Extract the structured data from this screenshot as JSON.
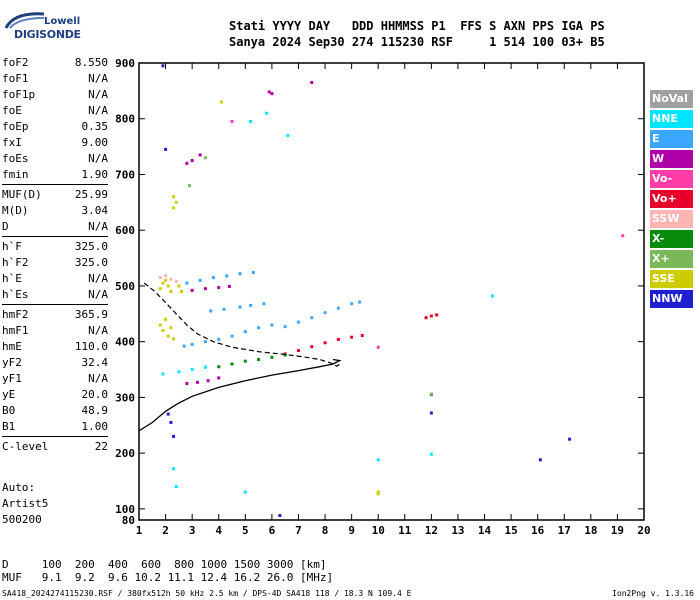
{
  "logo": {
    "text_top": "Lowell",
    "text_bottom": "DIGISONDE"
  },
  "header": {
    "line1": "Stati YYYY DAY   DDD HHMMSS P1  FFS S AXN PPS IGA PS",
    "line2": "Sanya 2024 Sep30 274 115230 RSF     1 514 100 03+ B5"
  },
  "params_groups": [
    [
      {
        "k": "foF2",
        "v": "8.550"
      },
      {
        "k": "foF1",
        "v": "N/A"
      },
      {
        "k": "foF1p",
        "v": "N/A"
      },
      {
        "k": "foE",
        "v": "N/A"
      },
      {
        "k": "foEp",
        "v": "0.35"
      },
      {
        "k": "fxI",
        "v": "9.00"
      },
      {
        "k": "foEs",
        "v": "N/A"
      },
      {
        "k": "fmin",
        "v": "1.90"
      }
    ],
    [
      {
        "k": "MUF(D)",
        "v": "25.99"
      },
      {
        "k": "M(D)",
        "v": "3.04"
      },
      {
        "k": "D",
        "v": "N/A"
      }
    ],
    [
      {
        "k": "h`F",
        "v": "325.0"
      },
      {
        "k": "h`F2",
        "v": "325.0"
      },
      {
        "k": "h`E",
        "v": "N/A"
      },
      {
        "k": "h`Es",
        "v": "N/A"
      }
    ],
    [
      {
        "k": "hmF2",
        "v": "365.9"
      },
      {
        "k": "hmF1",
        "v": "N/A"
      },
      {
        "k": "hmE",
        "v": "110.0"
      },
      {
        "k": "yF2",
        "v": "32.4"
      },
      {
        "k": "yF1",
        "v": "N/A"
      },
      {
        "k": "yE",
        "v": "20.0"
      },
      {
        "k": "B0",
        "v": "48.9"
      },
      {
        "k": "B1",
        "v": "1.00"
      }
    ],
    [
      {
        "k": "C-level",
        "v": "22"
      }
    ]
  ],
  "auto": [
    "Auto:",
    "Artist5",
    "500200"
  ],
  "legend": [
    {
      "label": "NoVal",
      "color": "#a0a0a0"
    },
    {
      "label": "NNE",
      "color": "#00e5ff"
    },
    {
      "label": "E",
      "color": "#3aa6ff"
    },
    {
      "label": "W",
      "color": "#b000a8"
    },
    {
      "label": "Vo-",
      "color": "#ff3ca8"
    },
    {
      "label": "Vo+",
      "color": "#e8002a"
    },
    {
      "label": "SSW",
      "color": "#ffb4b4"
    },
    {
      "label": "X-",
      "color": "#0a8a0a"
    },
    {
      "label": "X+",
      "color": "#7ab85a"
    },
    {
      "label": "SSE",
      "color": "#cccc00"
    },
    {
      "label": "NNW",
      "color": "#2020d0"
    }
  ],
  "dtable": {
    "row1": "D     100  200  400  600  800 1000 1500 3000 [km]",
    "row2": "MUF   9.1  9.2  9.6 10.2 11.1 12.4 16.2 26.0 [MHz]"
  },
  "footer": {
    "left": "SA418_2024274115230.RSF / 380fx512h 50 kHz 2.5 km / DPS-4D SA418 118 / 18.3 N 109.4 E",
    "right": "Ion2Png v. 1.3.16"
  },
  "chart_data": {
    "type": "scatter",
    "xlim": [
      1,
      20
    ],
    "ylim": [
      80,
      900
    ],
    "x_ticks": [
      1,
      2,
      3,
      4,
      5,
      6,
      7,
      8,
      9,
      10,
      11,
      12,
      13,
      14,
      15,
      16,
      17,
      18,
      19,
      20
    ],
    "y_ticks": [
      100,
      200,
      300,
      400,
      500,
      600,
      700,
      800,
      900
    ],
    "y_bottom_label": "80",
    "grid": false,
    "legend_position": "right",
    "traces": [
      {
        "name": "E",
        "color": "#3aa6ff",
        "points": [
          [
            2.7,
            392
          ],
          [
            3.0,
            395
          ],
          [
            3.5,
            400
          ],
          [
            4.0,
            404
          ],
          [
            4.5,
            410
          ],
          [
            5.0,
            418
          ],
          [
            5.5,
            425
          ],
          [
            6.0,
            430
          ]
        ]
      },
      {
        "name": "E",
        "color": "#3aa6ff",
        "points": [
          [
            3.7,
            455
          ],
          [
            4.2,
            458
          ],
          [
            4.8,
            462
          ],
          [
            5.2,
            465
          ],
          [
            5.7,
            468
          ]
        ]
      },
      {
        "name": "E",
        "color": "#3aa6ff",
        "points": [
          [
            6.5,
            427
          ],
          [
            7.0,
            435
          ],
          [
            7.5,
            443
          ],
          [
            8.0,
            452
          ],
          [
            8.5,
            460
          ],
          [
            9.0,
            468
          ],
          [
            9.3,
            471
          ]
        ]
      },
      {
        "name": "E",
        "color": "#3aa6ff",
        "points": [
          [
            2.8,
            505
          ],
          [
            3.3,
            510
          ],
          [
            3.8,
            515
          ],
          [
            4.3,
            518
          ],
          [
            4.8,
            522
          ],
          [
            5.3,
            524
          ]
        ]
      },
      {
        "name": "NNE",
        "color": "#00e5ff",
        "points": [
          [
            1.9,
            342
          ],
          [
            2.5,
            346
          ],
          [
            3.0,
            350
          ],
          [
            3.5,
            354
          ]
        ]
      },
      {
        "name": "Vo+",
        "color": "#e8002a",
        "points": [
          [
            6.5,
            378
          ],
          [
            7.0,
            384
          ],
          [
            7.5,
            391
          ],
          [
            8.0,
            398
          ],
          [
            8.5,
            404
          ],
          [
            9.0,
            408
          ],
          [
            9.4,
            411
          ]
        ]
      },
      {
        "name": "Vo+",
        "color": "#e8002a",
        "points": [
          [
            11.8,
            443
          ],
          [
            12.0,
            446
          ],
          [
            12.2,
            448
          ]
        ]
      },
      {
        "name": "X-",
        "color": "#0a8a0a",
        "points": [
          [
            4.0,
            355
          ],
          [
            4.5,
            360
          ],
          [
            5.0,
            365
          ],
          [
            5.5,
            368
          ],
          [
            6.0,
            372
          ],
          [
            6.5,
            376
          ]
        ]
      },
      {
        "name": "W",
        "color": "#b000a8",
        "points": [
          [
            2.8,
            325
          ],
          [
            3.2,
            327
          ],
          [
            3.6,
            330
          ],
          [
            4.0,
            335
          ]
        ]
      },
      {
        "name": "W",
        "color": "#b000a8",
        "points": [
          [
            3.0,
            492
          ],
          [
            3.5,
            495
          ],
          [
            4.0,
            497
          ],
          [
            4.4,
            499
          ]
        ]
      },
      {
        "name": "SSE",
        "color": "#cccc00",
        "points": [
          [
            1.8,
            495
          ],
          [
            1.9,
            505
          ],
          [
            2.0,
            510
          ],
          [
            2.1,
            500
          ],
          [
            2.2,
            490
          ],
          [
            1.8,
            430
          ],
          [
            1.9,
            420
          ],
          [
            2.0,
            440
          ],
          [
            2.1,
            410
          ],
          [
            2.2,
            425
          ],
          [
            2.3,
            405
          ],
          [
            2.5,
            500
          ],
          [
            2.6,
            490
          ]
        ]
      },
      {
        "name": "SSW",
        "color": "#ffb4b4",
        "points": [
          [
            1.8,
            515
          ],
          [
            2.0,
            518
          ],
          [
            2.2,
            512
          ],
          [
            2.4,
            508
          ]
        ]
      },
      {
        "name": "NNW",
        "color": "#2020d0",
        "points": [
          [
            1.9,
            895
          ],
          [
            2.0,
            745
          ],
          [
            2.1,
            270
          ],
          [
            2.2,
            255
          ],
          [
            2.3,
            230
          ],
          [
            6.3,
            88
          ],
          [
            16.1,
            188
          ],
          [
            17.2,
            225
          ],
          [
            12.0,
            305
          ],
          [
            12.0,
            272
          ]
        ]
      },
      {
        "name": "W",
        "color": "#b000a8",
        "points": [
          [
            2.8,
            720
          ],
          [
            3.0,
            725
          ],
          [
            3.3,
            735
          ],
          [
            5.9,
            848
          ],
          [
            6.0,
            845
          ],
          [
            7.5,
            865
          ]
        ]
      },
      {
        "name": "NNE",
        "color": "#00e5ff",
        "points": [
          [
            5.8,
            810
          ],
          [
            5.2,
            795
          ],
          [
            6.6,
            770
          ],
          [
            10.0,
            188
          ],
          [
            12.0,
            198
          ],
          [
            2.3,
            172
          ],
          [
            2.4,
            140
          ],
          [
            5.0,
            130
          ],
          [
            14.3,
            482
          ]
        ]
      },
      {
        "name": "SSE",
        "color": "#cccc00",
        "points": [
          [
            2.3,
            660
          ],
          [
            2.4,
            650
          ],
          [
            2.3,
            640
          ],
          [
            4.1,
            830
          ],
          [
            10.0,
            130
          ],
          [
            10.0,
            127
          ]
        ]
      },
      {
        "name": "Vo-",
        "color": "#ff3ca8",
        "points": [
          [
            19.2,
            590
          ],
          [
            10.0,
            390
          ],
          [
            4.5,
            795
          ]
        ]
      },
      {
        "name": "X+",
        "color": "#7ab85a",
        "points": [
          [
            12.0,
            306
          ],
          [
            2.9,
            680
          ],
          [
            3.5,
            730
          ]
        ]
      }
    ],
    "profile_solid": [
      [
        1.0,
        240
      ],
      [
        1.5,
        255
      ],
      [
        2.0,
        275
      ],
      [
        2.5,
        290
      ],
      [
        3.0,
        302
      ],
      [
        4.0,
        318
      ],
      [
        5.0,
        330
      ],
      [
        6.0,
        340
      ],
      [
        7.0,
        348
      ],
      [
        7.8,
        355
      ],
      [
        8.3,
        360
      ],
      [
        8.55,
        366
      ],
      [
        8.3,
        368
      ]
    ],
    "profile_dashed": [
      [
        1.2,
        505
      ],
      [
        1.6,
        490
      ],
      [
        2.0,
        470
      ],
      [
        2.4,
        450
      ],
      [
        2.8,
        430
      ],
      [
        3.2,
        414
      ],
      [
        3.8,
        400
      ],
      [
        4.5,
        390
      ],
      [
        5.5,
        382
      ],
      [
        6.5,
        377
      ],
      [
        7.3,
        372
      ],
      [
        7.8,
        368
      ],
      [
        8.2,
        362
      ],
      [
        8.45,
        356
      ],
      [
        8.55,
        360
      ]
    ]
  }
}
